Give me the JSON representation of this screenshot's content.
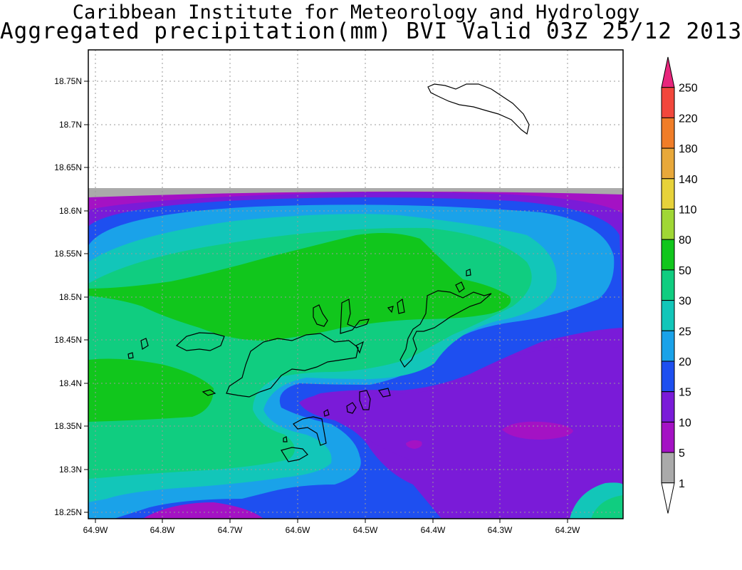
{
  "title": {
    "line1": "Caribbean Institute for Meteorology and Hydrology",
    "line2": "Aggregated precipitation(mm) BVI Valid 03Z 25/12 2013"
  },
  "axes": {
    "y_ticks": [
      "18.75N",
      "18.7N",
      "18.65N",
      "18.6N",
      "18.55N",
      "18.5N",
      "18.45N",
      "18.4N",
      "18.35N",
      "18.3N",
      "18.25N"
    ],
    "x_ticks": [
      "64.9W",
      "64.8W",
      "64.7W",
      "64.6W",
      "64.5W",
      "64.4W",
      "64.3W",
      "64.2W"
    ]
  },
  "colorbar": {
    "levels": [
      "250",
      "220",
      "180",
      "140",
      "110",
      "80",
      "50",
      "30",
      "25",
      "20",
      "15",
      "10",
      "5",
      "1"
    ],
    "colors": [
      "#e8267c",
      "#f2473c",
      "#f07d28",
      "#e8a83a",
      "#e7d23a",
      "#a0d735",
      "#11c61c",
      "#10cd80",
      "#12c6b9",
      "#1aa2e9",
      "#1e4ff0",
      "#7a1bd8",
      "#a412c4",
      "#aaaaaa",
      "#ffffff"
    ]
  },
  "legend_colors": {
    "no_data": "#ffffff",
    "grey": "#aaaaaa",
    "violet": "#a412c4",
    "purple": "#7a1bd8",
    "blue": "#1e4ff0",
    "light_blue": "#1aa2e9",
    "cyan": "#12c6b9",
    "sea_green": "#10cd80",
    "green": "#11c61c"
  }
}
